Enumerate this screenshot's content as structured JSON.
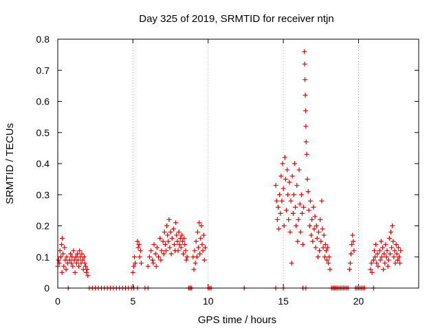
{
  "chart_data": {
    "type": "scatter",
    "title": "Day 325 of 2019, SRMTID for receiver ntjn",
    "xlabel": "GPS time / hours",
    "ylabel": "SRMTID / TECUs",
    "xlim": [
      0,
      24
    ],
    "ylim": [
      0,
      0.8
    ],
    "x_ticks": [
      0,
      5,
      10,
      15,
      20
    ],
    "x_tick_labels": [
      "0",
      "5",
      "10",
      "15",
      "20"
    ],
    "y_ticks": [
      0,
      0.1,
      0.2,
      0.3,
      0.4,
      0.5,
      0.6,
      0.7,
      0.8
    ],
    "y_tick_labels": [
      "0",
      "0.1",
      "0.2",
      "0.3",
      "0.4",
      "0.5",
      "0.6",
      "0.7",
      "0.8"
    ],
    "grid": "vertical dotted lines at x ticks",
    "marker": "+",
    "color": "#dd0000",
    "series": [
      {
        "name": "SRMTID",
        "points": [
          [
            0.0,
            0.07
          ],
          [
            0.05,
            0.09
          ],
          [
            0.1,
            0.08
          ],
          [
            0.15,
            0.12
          ],
          [
            0.2,
            0.1
          ],
          [
            0.25,
            0.14
          ],
          [
            0.28,
            0.05
          ],
          [
            0.3,
            0.16
          ],
          [
            0.35,
            0.11
          ],
          [
            0.4,
            0.07
          ],
          [
            0.45,
            0.13
          ],
          [
            0.5,
            0.09
          ],
          [
            0.55,
            0.06
          ],
          [
            0.6,
            0.1
          ],
          [
            0.65,
            0.08
          ],
          [
            0.8,
            0.09
          ],
          [
            0.85,
            0.11
          ],
          [
            0.9,
            0.08
          ],
          [
            0.95,
            0.1
          ],
          [
            1.0,
            0.07
          ],
          [
            1.05,
            0.12
          ],
          [
            1.1,
            0.09
          ],
          [
            1.15,
            0.05
          ],
          [
            1.2,
            0.1
          ],
          [
            1.25,
            0.08
          ],
          [
            1.3,
            0.11
          ],
          [
            1.35,
            0.09
          ],
          [
            1.4,
            0.07
          ],
          [
            1.45,
            0.12
          ],
          [
            1.5,
            0.1
          ],
          [
            1.55,
            0.08
          ],
          [
            1.6,
            0.11
          ],
          [
            1.65,
            0.09
          ],
          [
            1.7,
            0.06
          ],
          [
            1.75,
            0.1
          ],
          [
            1.8,
            0.08
          ],
          [
            1.85,
            0.07
          ],
          [
            1.9,
            0.05
          ],
          [
            1.95,
            0.06
          ],
          [
            2.0,
            0.04
          ],
          [
            0.7,
            0.0
          ],
          [
            2.1,
            0.0
          ],
          [
            2.3,
            0.0
          ],
          [
            2.5,
            0.0
          ],
          [
            2.7,
            0.0
          ],
          [
            2.9,
            0.0
          ],
          [
            3.1,
            0.0
          ],
          [
            3.3,
            0.0
          ],
          [
            3.5,
            0.0
          ],
          [
            3.7,
            0.0
          ],
          [
            3.9,
            0.0
          ],
          [
            4.1,
            0.0
          ],
          [
            4.3,
            0.0
          ],
          [
            4.5,
            0.0
          ],
          [
            4.7,
            0.0
          ],
          [
            4.9,
            0.0
          ],
          [
            5.05,
            0.0
          ],
          [
            5.3,
            0.0
          ],
          [
            5.8,
            0.0
          ],
          [
            6.0,
            0.0
          ],
          [
            5.0,
            0.05
          ],
          [
            5.05,
            0.07
          ],
          [
            5.1,
            0.1
          ],
          [
            5.15,
            0.08
          ],
          [
            5.3,
            0.15
          ],
          [
            5.35,
            0.13
          ],
          [
            5.4,
            0.14
          ],
          [
            5.45,
            0.1
          ],
          [
            5.5,
            0.12
          ],
          [
            5.55,
            0.08
          ],
          [
            6.0,
            0.07
          ],
          [
            6.1,
            0.1
          ],
          [
            6.2,
            0.12
          ],
          [
            6.3,
            0.09
          ],
          [
            6.35,
            0.08
          ],
          [
            6.4,
            0.14
          ],
          [
            6.5,
            0.11
          ],
          [
            6.55,
            0.07
          ],
          [
            6.6,
            0.13
          ],
          [
            6.7,
            0.1
          ],
          [
            6.8,
            0.16
          ],
          [
            6.85,
            0.09
          ],
          [
            6.9,
            0.12
          ],
          [
            7.0,
            0.15
          ],
          [
            7.05,
            0.11
          ],
          [
            7.1,
            0.18
          ],
          [
            7.15,
            0.14
          ],
          [
            7.2,
            0.12
          ],
          [
            7.25,
            0.2
          ],
          [
            7.3,
            0.17
          ],
          [
            7.35,
            0.15
          ],
          [
            7.4,
            0.22
          ],
          [
            7.45,
            0.13
          ],
          [
            7.5,
            0.18
          ],
          [
            7.55,
            0.11
          ],
          [
            7.6,
            0.16
          ],
          [
            7.7,
            0.19
          ],
          [
            7.75,
            0.14
          ],
          [
            7.8,
            0.12
          ],
          [
            7.85,
            0.21
          ],
          [
            7.9,
            0.17
          ],
          [
            7.95,
            0.15
          ],
          [
            8.0,
            0.12
          ],
          [
            8.05,
            0.18
          ],
          [
            8.1,
            0.14
          ],
          [
            8.15,
            0.16
          ],
          [
            8.2,
            0.13
          ],
          [
            8.25,
            0.17
          ],
          [
            8.3,
            0.15
          ],
          [
            8.35,
            0.11
          ],
          [
            8.4,
            0.16
          ],
          [
            8.45,
            0.14
          ],
          [
            8.5,
            0.12
          ],
          [
            8.55,
            0.09
          ],
          [
            8.6,
            0.1
          ],
          [
            8.7,
            0.0
          ],
          [
            8.8,
            0.0
          ],
          [
            8.9,
            0.0
          ],
          [
            10.0,
            0.0
          ],
          [
            10.1,
            0.0
          ],
          [
            10.2,
            0.0
          ],
          [
            12.4,
            0.0
          ],
          [
            14.5,
            0.0
          ],
          [
            15.0,
            0.0
          ],
          [
            16.3,
            0.0
          ],
          [
            16.5,
            0.0
          ],
          [
            9.0,
            0.1
          ],
          [
            9.05,
            0.06
          ],
          [
            9.1,
            0.12
          ],
          [
            9.15,
            0.08
          ],
          [
            9.2,
            0.15
          ],
          [
            9.25,
            0.1
          ],
          [
            9.3,
            0.18
          ],
          [
            9.35,
            0.13
          ],
          [
            9.4,
            0.21
          ],
          [
            9.45,
            0.11
          ],
          [
            9.5,
            0.16
          ],
          [
            9.55,
            0.2
          ],
          [
            9.6,
            0.14
          ],
          [
            9.65,
            0.12
          ],
          [
            9.7,
            0.17
          ],
          [
            9.75,
            0.09
          ],
          [
            9.8,
            0.13
          ],
          [
            14.5,
            0.33
          ],
          [
            14.55,
            0.28
          ],
          [
            14.6,
            0.22
          ],
          [
            14.65,
            0.26
          ],
          [
            14.7,
            0.19
          ],
          [
            14.75,
            0.3
          ],
          [
            14.8,
            0.24
          ],
          [
            14.85,
            0.36
          ],
          [
            14.9,
            0.28
          ],
          [
            14.95,
            0.4
          ],
          [
            15.0,
            0.32
          ],
          [
            15.05,
            0.2
          ],
          [
            15.1,
            0.42
          ],
          [
            15.15,
            0.35
          ],
          [
            15.2,
            0.25
          ],
          [
            15.25,
            0.38
          ],
          [
            15.3,
            0.3
          ],
          [
            15.35,
            0.22
          ],
          [
            15.4,
            0.34
          ],
          [
            15.45,
            0.18
          ],
          [
            15.5,
            0.28
          ],
          [
            15.55,
            0.08
          ],
          [
            15.6,
            0.36
          ],
          [
            15.65,
            0.24
          ],
          [
            15.7,
            0.3
          ],
          [
            15.75,
            0.4
          ],
          [
            15.8,
            0.26
          ],
          [
            15.85,
            0.2
          ],
          [
            15.9,
            0.33
          ],
          [
            15.95,
            0.15
          ],
          [
            16.0,
            0.22
          ],
          [
            16.05,
            0.38
          ],
          [
            16.1,
            0.27
          ],
          [
            16.15,
            0.18
          ],
          [
            16.2,
            0.3
          ],
          [
            16.25,
            0.24
          ],
          [
            16.3,
            0.14
          ],
          [
            16.35,
            0.26
          ],
          [
            16.4,
            0.76
          ],
          [
            16.42,
            0.72
          ],
          [
            16.44,
            0.67
          ],
          [
            16.46,
            0.62
          ],
          [
            16.48,
            0.57
          ],
          [
            16.5,
            0.52
          ],
          [
            16.52,
            0.47
          ],
          [
            16.55,
            0.43
          ],
          [
            16.6,
            0.35
          ],
          [
            16.65,
            0.31
          ],
          [
            16.7,
            0.25
          ],
          [
            16.75,
            0.2
          ],
          [
            16.8,
            0.28
          ],
          [
            16.85,
            0.17
          ],
          [
            16.9,
            0.22
          ],
          [
            16.95,
            0.15
          ],
          [
            17.0,
            0.26
          ],
          [
            17.05,
            0.19
          ],
          [
            17.1,
            0.23
          ],
          [
            17.15,
            0.13
          ],
          [
            17.2,
            0.2
          ],
          [
            17.25,
            0.16
          ],
          [
            17.3,
            0.1
          ],
          [
            17.35,
            0.18
          ],
          [
            17.4,
            0.12
          ],
          [
            17.45,
            0.22
          ],
          [
            17.5,
            0.15
          ],
          [
            17.55,
            0.28
          ],
          [
            17.6,
            0.19
          ],
          [
            17.65,
            0.13
          ],
          [
            17.7,
            0.17
          ],
          [
            17.75,
            0.1
          ],
          [
            17.8,
            0.14
          ],
          [
            17.85,
            0.12
          ],
          [
            17.9,
            0.09
          ],
          [
            17.95,
            0.13
          ],
          [
            18.0,
            0.08
          ],
          [
            18.05,
            0.1
          ],
          [
            18.1,
            0.06
          ],
          [
            18.2,
            0.0
          ],
          [
            18.3,
            0.0
          ],
          [
            18.4,
            0.0
          ],
          [
            18.5,
            0.0
          ],
          [
            18.6,
            0.0
          ],
          [
            18.7,
            0.0
          ],
          [
            18.8,
            0.0
          ],
          [
            18.9,
            0.0
          ],
          [
            19.0,
            0.0
          ],
          [
            19.1,
            0.0
          ],
          [
            19.2,
            0.0
          ],
          [
            19.3,
            0.0
          ],
          [
            19.4,
            0.06
          ],
          [
            19.45,
            0.08
          ],
          [
            19.5,
            0.11
          ],
          [
            19.55,
            0.14
          ],
          [
            19.6,
            0.17
          ],
          [
            19.65,
            0.15
          ],
          [
            19.7,
            0.12
          ],
          [
            19.8,
            0.0
          ],
          [
            19.9,
            0.0
          ],
          [
            20.0,
            0.0
          ],
          [
            20.1,
            0.0
          ],
          [
            20.2,
            0.0
          ],
          [
            20.3,
            0.0
          ],
          [
            20.4,
            0.0
          ],
          [
            21.0,
            0.0
          ],
          [
            20.8,
            0.06
          ],
          [
            20.85,
            0.08
          ],
          [
            20.9,
            0.05
          ],
          [
            21.0,
            0.09
          ],
          [
            21.05,
            0.12
          ],
          [
            21.1,
            0.1
          ],
          [
            21.15,
            0.14
          ],
          [
            21.2,
            0.08
          ],
          [
            21.25,
            0.11
          ],
          [
            21.3,
            0.07
          ],
          [
            21.4,
            0.12
          ],
          [
            21.45,
            0.09
          ],
          [
            21.5,
            0.15
          ],
          [
            21.55,
            0.1
          ],
          [
            21.6,
            0.13
          ],
          [
            21.65,
            0.06
          ],
          [
            21.7,
            0.11
          ],
          [
            21.75,
            0.08
          ],
          [
            21.8,
            0.14
          ],
          [
            21.85,
            0.1
          ],
          [
            21.9,
            0.12
          ],
          [
            21.95,
            0.07
          ],
          [
            22.0,
            0.09
          ],
          [
            22.05,
            0.16
          ],
          [
            22.1,
            0.11
          ],
          [
            22.15,
            0.18
          ],
          [
            22.2,
            0.13
          ],
          [
            22.25,
            0.2
          ],
          [
            22.3,
            0.15
          ],
          [
            22.35,
            0.1
          ],
          [
            22.4,
            0.12
          ],
          [
            22.45,
            0.08
          ],
          [
            22.5,
            0.14
          ],
          [
            22.55,
            0.11
          ],
          [
            22.6,
            0.09
          ],
          [
            22.65,
            0.13
          ],
          [
            22.7,
            0.1
          ],
          [
            22.75,
            0.08
          ],
          [
            22.8,
            0.12
          ]
        ]
      }
    ]
  }
}
